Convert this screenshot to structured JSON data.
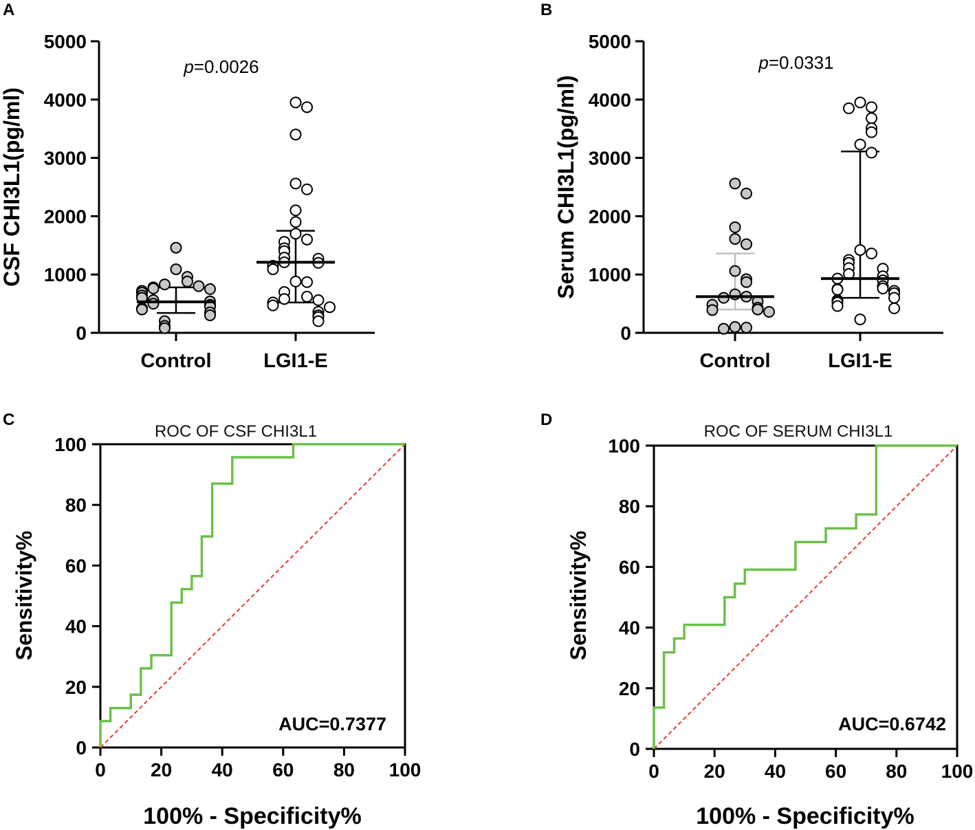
{
  "colors": {
    "control_fill": "#c8c8c8",
    "lgi1_fill": "#ffffff",
    "roc_line": "#6cc04a",
    "reference_line": "#e8392d",
    "control_bar": "#bfbfbf",
    "axis": "#000000"
  },
  "chart_data": [
    {
      "id": "A",
      "panel_label": "A",
      "type": "scatter",
      "title": "",
      "ylabel": "CSF CHI3L1(pg/ml)",
      "xlabel": "",
      "ylim": [
        0,
        5000
      ],
      "yticks": [
        "0",
        "1000",
        "2000",
        "3000",
        "4000",
        "5000"
      ],
      "categories": [
        "Control",
        "LGI1-E"
      ],
      "annotation": {
        "prefix": "p",
        "text": "=0.0026"
      },
      "series": [
        {
          "name": "Control",
          "median": 530,
          "q1": 340,
          "q3": 780,
          "points": [
            1460,
            1090,
            960,
            880,
            830,
            800,
            780,
            760,
            750,
            720,
            690,
            640,
            600,
            560,
            540,
            500,
            480,
            450,
            420,
            400,
            350,
            300,
            200,
            120,
            80
          ]
        },
        {
          "name": "LGI1-E",
          "median": 1210,
          "q1": 520,
          "q3": 1750,
          "points": [
            3950,
            3870,
            3400,
            2560,
            2460,
            2100,
            1900,
            1700,
            1600,
            1560,
            1450,
            1400,
            1290,
            1270,
            1210,
            1200,
            1150,
            1090,
            880,
            870,
            700,
            620,
            580,
            560,
            520,
            470,
            440,
            360,
            300,
            270,
            200
          ]
        }
      ]
    },
    {
      "id": "B",
      "panel_label": "B",
      "type": "scatter",
      "title": "",
      "ylabel": "Serum CHI3L1(pg/ml)",
      "xlabel": "",
      "ylim": [
        0,
        5000
      ],
      "yticks": [
        "0",
        "1000",
        "2000",
        "3000",
        "4000",
        "5000"
      ],
      "categories": [
        "Control",
        "LGI1-E"
      ],
      "annotation": {
        "prefix": "p",
        "text": "=0.0331"
      },
      "series": [
        {
          "name": "Control",
          "median": 620,
          "q1": 400,
          "q3": 1360,
          "points": [
            2560,
            2390,
            1810,
            1610,
            1520,
            1060,
            920,
            870,
            660,
            620,
            600,
            540,
            480,
            430,
            400,
            390,
            360,
            100,
            90,
            70
          ]
        },
        {
          "name": "LGI1-E",
          "median": 930,
          "q1": 600,
          "q3": 3110,
          "points": [
            3950,
            3870,
            3850,
            3680,
            3510,
            3440,
            3230,
            3090,
            1420,
            1360,
            1250,
            1200,
            1110,
            1100,
            1010,
            970,
            930,
            900,
            800,
            760,
            750,
            740,
            720,
            680,
            600,
            560,
            540,
            520,
            460,
            420,
            230
          ]
        }
      ]
    },
    {
      "id": "C",
      "panel_label": "C",
      "type": "line",
      "title": "ROC OF CSF CHI3L1",
      "ylabel": "Sensitivity%",
      "xlabel": "100% - Specificity%",
      "xlim": [
        0,
        100
      ],
      "ylim": [
        0,
        100
      ],
      "xticks": [
        "0",
        "20",
        "40",
        "60",
        "80",
        "100"
      ],
      "yticks": [
        "0",
        "20",
        "40",
        "60",
        "80",
        "100"
      ],
      "annotation": "AUC=0.7377",
      "series": [
        {
          "name": "ROC",
          "x": [
            0,
            0,
            3.3,
            3.3,
            10,
            10,
            13.3,
            13.3,
            16.7,
            16.7,
            23.3,
            23.3,
            26.7,
            26.7,
            30,
            30,
            33.3,
            33.3,
            36.7,
            36.7,
            43.3,
            43.3,
            63.3,
            63.3,
            100
          ],
          "y": [
            0,
            8.7,
            8.7,
            13,
            13,
            17.4,
            17.4,
            26.1,
            26.1,
            30.4,
            30.4,
            47.8,
            47.8,
            52.2,
            52.2,
            56.5,
            56.5,
            69.6,
            69.6,
            87,
            87,
            95.7,
            95.7,
            100,
            100
          ]
        },
        {
          "name": "Reference",
          "x": [
            0,
            100
          ],
          "y": [
            0,
            100
          ]
        }
      ]
    },
    {
      "id": "D",
      "panel_label": "D",
      "type": "line",
      "title": "ROC OF SERUM CHI3L1",
      "ylabel": "Sensitivity%",
      "xlabel": "100% - Specificity%",
      "xlim": [
        0,
        100
      ],
      "ylim": [
        0,
        100
      ],
      "xticks": [
        "0",
        "20",
        "40",
        "60",
        "80",
        "100"
      ],
      "yticks": [
        "0",
        "20",
        "40",
        "60",
        "80",
        "100"
      ],
      "annotation": "AUC=0.6742",
      "series": [
        {
          "name": "ROC",
          "x": [
            0,
            0,
            3.3,
            3.3,
            6.7,
            6.7,
            10,
            10,
            23.3,
            23.3,
            26.7,
            26.7,
            30,
            30,
            46.7,
            46.7,
            56.7,
            56.7,
            66.7,
            66.7,
            73.3,
            73.3,
            100
          ],
          "y": [
            0,
            13.6,
            13.6,
            31.8,
            31.8,
            36.4,
            36.4,
            40.9,
            40.9,
            50,
            50,
            54.5,
            54.5,
            59.1,
            59.1,
            68.2,
            68.2,
            72.7,
            72.7,
            77.3,
            77.3,
            100,
            100
          ]
        },
        {
          "name": "Reference",
          "x": [
            0,
            100
          ],
          "y": [
            0,
            100
          ]
        }
      ]
    }
  ]
}
